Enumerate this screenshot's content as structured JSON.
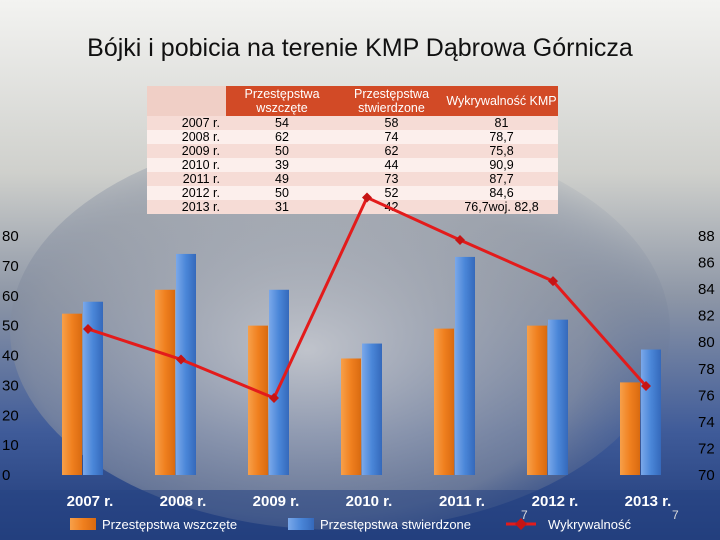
{
  "slide": {
    "title": "Bójki i pobicia na terenie KMP Dąbrowa Górnicza",
    "page_number": "7",
    "page_number_right": "7"
  },
  "table": {
    "headers": [
      "",
      "Przestępstwa wszczęte",
      "Przestępstwa stwierdzone",
      "Wykrywalność KMP"
    ],
    "rows": [
      [
        "2007 r.",
        "54",
        "58",
        "81"
      ],
      [
        "2008 r.",
        "62",
        "74",
        "78,7"
      ],
      [
        "2009 r.",
        "50",
        "62",
        "75,8"
      ],
      [
        "2010 r.",
        "39",
        "44",
        "90,9"
      ],
      [
        "2011 r.",
        "49",
        "73",
        "87,7"
      ],
      [
        "2012 r.",
        "50",
        "52",
        "84,6"
      ],
      [
        "2013 r.",
        "31",
        "42",
        "76,7woj. 82,8"
      ]
    ]
  },
  "chart_data": {
    "type": "bar",
    "categories": [
      "2007 r.",
      "2008 r.",
      "2009 r.",
      "2010 r.",
      "2011 r.",
      "2012 r.",
      "2013 r."
    ],
    "series": [
      {
        "name": "Przestępstwa wszczęte",
        "type": "bar",
        "axis": "left",
        "color": "#f07f1f",
        "values": [
          54,
          62,
          50,
          39,
          49,
          50,
          31
        ]
      },
      {
        "name": "Przestępstwa stwierdzone",
        "type": "bar",
        "axis": "left",
        "color": "#4a86d8",
        "values": [
          58,
          74,
          62,
          44,
          73,
          52,
          42
        ]
      },
      {
        "name": "Wykrywalność",
        "type": "line",
        "axis": "right",
        "color": "#e31b1b",
        "values": [
          81,
          78.7,
          75.8,
          90.9,
          87.7,
          84.6,
          76.7
        ]
      }
    ],
    "ylim_left": [
      0,
      80
    ],
    "ylim_right": [
      70,
      88
    ],
    "yticks_left": [
      0,
      10,
      20,
      30,
      40,
      50,
      60,
      70,
      80
    ],
    "yticks_right": [
      70,
      72,
      74,
      76,
      78,
      80,
      82,
      84,
      86,
      88
    ],
    "grid": false,
    "legend_position": "bottom"
  }
}
